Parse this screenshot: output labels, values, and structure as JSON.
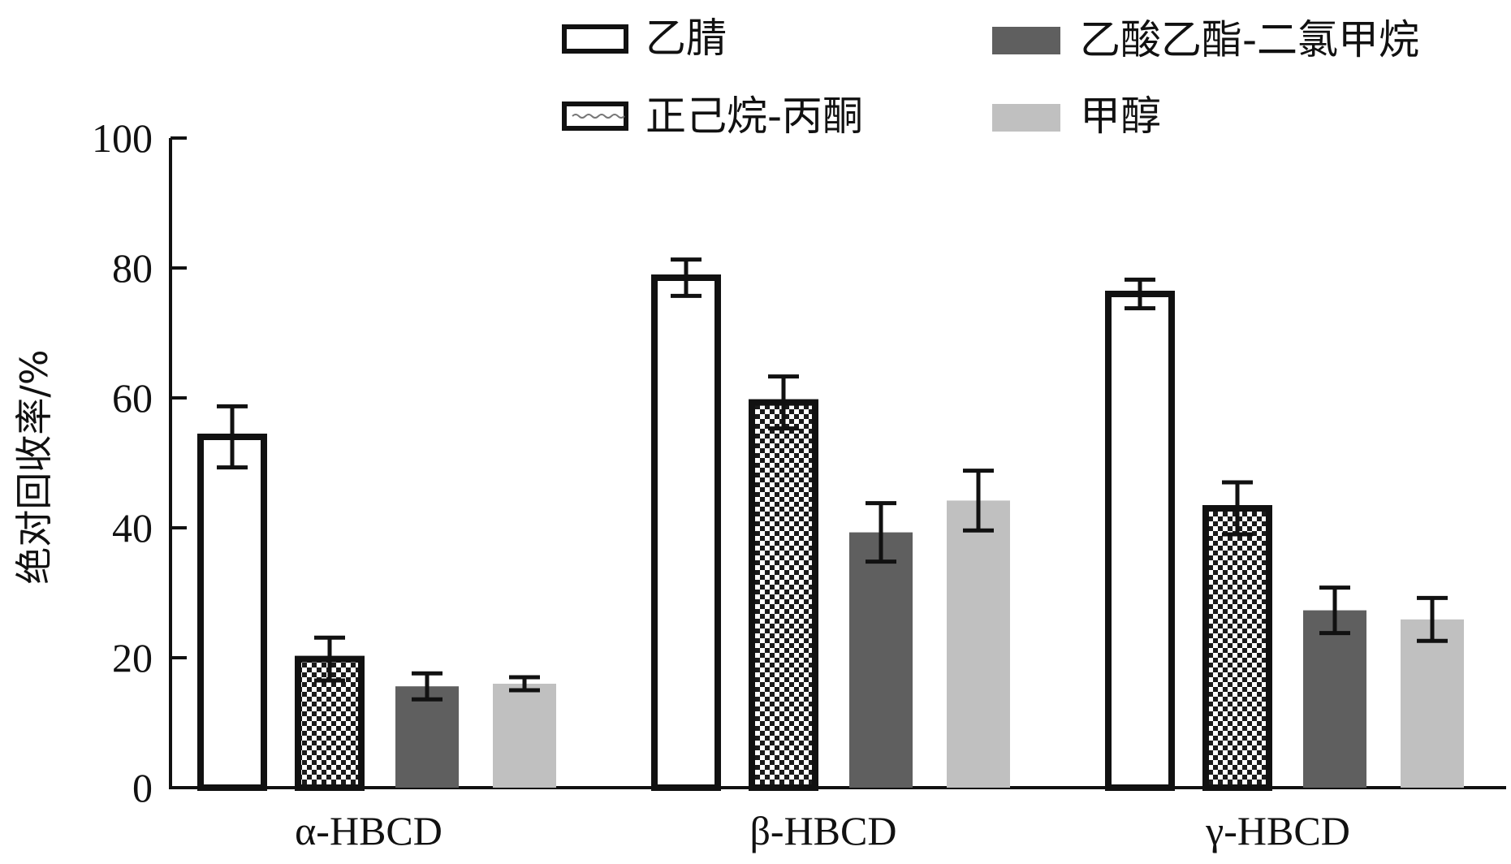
{
  "chart_data": {
    "type": "bar",
    "title": "",
    "xlabel": "",
    "ylabel": "绝对回收率/%",
    "ylim": [
      0,
      100
    ],
    "yticks": [
      0,
      20,
      40,
      60,
      80,
      100
    ],
    "categories": [
      "α-HBCD",
      "β-HBCD",
      "γ-HBCD"
    ],
    "legend_position": "top-right",
    "grid": false,
    "series": [
      {
        "name": "乙腈",
        "values": [
          54,
          78.5,
          76
        ],
        "errors": [
          4.7,
          2.8,
          2.2
        ],
        "style": "hollow",
        "color": "#ffffff"
      },
      {
        "name": "正己烷-丙酮",
        "values": [
          19.8,
          59.3,
          43
        ],
        "errors": [
          3.3,
          4.0,
          4.0
        ],
        "style": "checker",
        "color": "#1a1a1a"
      },
      {
        "name": "乙酸乙酯-二氯甲烷",
        "values": [
          15.6,
          39.3,
          27.3
        ],
        "errors": [
          2.0,
          4.5,
          3.5
        ],
        "style": "solid",
        "color": "#5f5f5f"
      },
      {
        "name": "甲醇",
        "values": [
          16,
          44.2,
          25.9
        ],
        "errors": [
          1.0,
          4.6,
          3.3
        ],
        "style": "solid",
        "color": "#c0c0c0"
      }
    ]
  }
}
